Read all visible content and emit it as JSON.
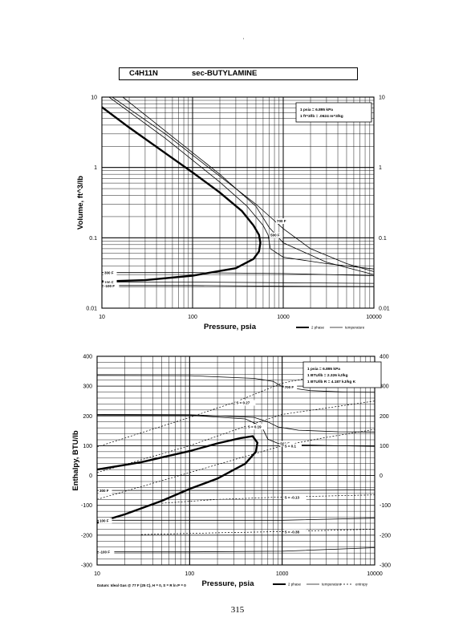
{
  "header": {
    "formula": "C4H11N",
    "name": "sec-BUTYLAMINE",
    "mark": "'"
  },
  "page_number": "315",
  "chart_data": [
    {
      "type": "line",
      "title": "",
      "xlabel": "Pressure,  psia",
      "ylabel": "Volume, ft^3/lb",
      "xscale": "log",
      "yscale": "log",
      "xlim": [
        10,
        10000
      ],
      "ylim": [
        0.01,
        10
      ],
      "grid": true,
      "x_ticks": [
        "10",
        "100",
        "1000",
        "10000"
      ],
      "y_ticks": [
        "10",
        "1",
        "0.1",
        "0.01"
      ],
      "notes": [
        "1 psia  =  6.895 kPa",
        "1 ft^3/lb  =  .0624 m^3/kg"
      ],
      "legend": [
        "2 phase",
        "temperature"
      ],
      "legend_position": "bottom-right",
      "series": [
        {
          "kind": "2 phase",
          "x": [
            10,
            20,
            50,
            100,
            200,
            350,
            470,
            540,
            560,
            540,
            470,
            300,
            100,
            30,
            10
          ],
          "y": [
            7.2,
            3.7,
            1.6,
            0.85,
            0.44,
            0.24,
            0.15,
            0.11,
            0.085,
            0.064,
            0.05,
            0.037,
            0.029,
            0.025,
            0.024
          ]
        },
        {
          "kind": "temperature",
          "label": "700 F",
          "x": [
            13,
            50,
            200,
            500,
            800,
            1000,
            2000,
            5000,
            10000
          ],
          "y": [
            10,
            3.0,
            0.75,
            0.3,
            0.175,
            0.135,
            0.07,
            0.043,
            0.033
          ]
        },
        {
          "kind": "temperature",
          "label": "",
          "x": [
            17,
            50,
            200,
            500,
            700,
            1000,
            3000,
            10000
          ],
          "y": [
            10,
            3.3,
            0.8,
            0.28,
            0.14,
            0.085,
            0.045,
            0.03
          ]
        },
        {
          "kind": "temperature",
          "label": "500 F",
          "x": [
            12,
            50,
            200,
            400,
            600,
            680,
            720,
            1000,
            3000,
            10000
          ],
          "y": [
            10,
            2.6,
            0.62,
            0.28,
            0.15,
            0.11,
            0.07,
            0.053,
            0.043,
            0.036
          ]
        },
        {
          "kind": "temperature",
          "label": "300 F",
          "x": [
            10,
            100,
            1000,
            10000
          ],
          "y": [
            0.032,
            0.032,
            0.031,
            0.029
          ]
        },
        {
          "kind": "temperature",
          "label": "100 F",
          "x": [
            10,
            100,
            1000,
            10000
          ],
          "y": [
            0.0235,
            0.0235,
            0.023,
            0.0225
          ]
        },
        {
          "kind": "temperature",
          "label": "-100 F",
          "x": [
            10,
            100,
            1000,
            10000
          ],
          "y": [
            0.021,
            0.021,
            0.0205,
            0.0203
          ]
        }
      ]
    },
    {
      "type": "line",
      "title": "",
      "xlabel": "Pressure,  psia",
      "ylabel": "Enthalpy, BTU/lb",
      "xscale": "log",
      "yscale": "linear",
      "xlim": [
        10,
        10000
      ],
      "ylim": [
        -300,
        400
      ],
      "grid": true,
      "x_ticks": [
        "10",
        "100",
        "1000",
        "10000"
      ],
      "y_ticks": [
        "400",
        "300",
        "200",
        "100",
        "0",
        "-100",
        "-200",
        "-300"
      ],
      "notes": [
        "1 psia  =  6.895 kPa",
        "1 BTU/lb  =  2.326 kJ/kg",
        "1 BTU/lb R  =  4.187 kJ/kg K"
      ],
      "legend": [
        "2 phase",
        "temperature",
        "entropy"
      ],
      "legend_position": "bottom-right",
      "footnote": "Datum: Ideal Gas @ 77 F (25 C),  H = 0,  S = R ln P = 0",
      "series": [
        {
          "kind": "2 phase",
          "x": [
            10,
            30,
            100,
            200,
            350,
            480,
            540,
            520,
            400,
            200,
            100,
            50,
            20,
            10
          ],
          "y": [
            20,
            45,
            82,
            108,
            125,
            132,
            110,
            80,
            40,
            -10,
            -45,
            -85,
            -130,
            -158
          ]
        },
        {
          "kind": "temperature",
          "label": "700 F",
          "x": [
            10,
            100,
            500,
            800,
            1000,
            2000,
            5000,
            10000
          ],
          "y": [
            336,
            335,
            326,
            316,
            298,
            285,
            280,
            279
          ]
        },
        {
          "kind": "temperature",
          "label": "",
          "x": [
            10,
            100,
            500,
            700,
            900,
            1500,
            4000,
            10000
          ],
          "y": [
            205,
            204,
            195,
            180,
            163,
            152,
            147,
            146
          ]
        },
        {
          "kind": "temperature",
          "label": "500 F",
          "x": [
            10,
            100,
            400,
            600,
            700,
            900,
            1500,
            4000,
            10000
          ],
          "y": [
            203,
            202,
            190,
            165,
            122,
            108,
            103,
            100,
            98
          ]
        },
        {
          "kind": "temperature",
          "label": "300 F",
          "x": [
            10,
            100,
            1000,
            10000
          ],
          "y": [
            -50,
            -50,
            -50,
            -48
          ]
        },
        {
          "kind": "temperature",
          "label": "100 F",
          "x": [
            10,
            100,
            1000,
            10000
          ],
          "y": [
            -150,
            -150,
            -150,
            -143
          ]
        },
        {
          "kind": "temperature",
          "label": "-100 F",
          "x": [
            10,
            100,
            1000,
            10000
          ],
          "y": [
            -256,
            -256,
            -254,
            -242
          ]
        },
        {
          "kind": "entropy",
          "label": "S = 0.27",
          "x": [
            10,
            100,
            300,
            1000,
            10000
          ],
          "y": [
            96,
            195,
            245,
            310,
            370
          ]
        },
        {
          "kind": "entropy",
          "label": "S = 0.19",
          "x": [
            10,
            100,
            400,
            1000,
            10000
          ],
          "y": [
            10,
            100,
            165,
            205,
            250
          ]
        },
        {
          "kind": "entropy",
          "label": "S = 0.1",
          "x": [
            10,
            100,
            1000,
            3000,
            10000
          ],
          "y": [
            -80,
            10,
            100,
            128,
            155
          ]
        },
        {
          "kind": "entropy",
          "label": "S = -0.13",
          "x": [
            50,
            200,
            1000,
            10000
          ],
          "y": [
            -93,
            -80,
            -72,
            -65
          ]
        },
        {
          "kind": "entropy",
          "label": "S = -0.38",
          "x": [
            30,
            200,
            1000,
            10000
          ],
          "y": [
            -198,
            -192,
            -188,
            -180
          ]
        }
      ]
    }
  ]
}
